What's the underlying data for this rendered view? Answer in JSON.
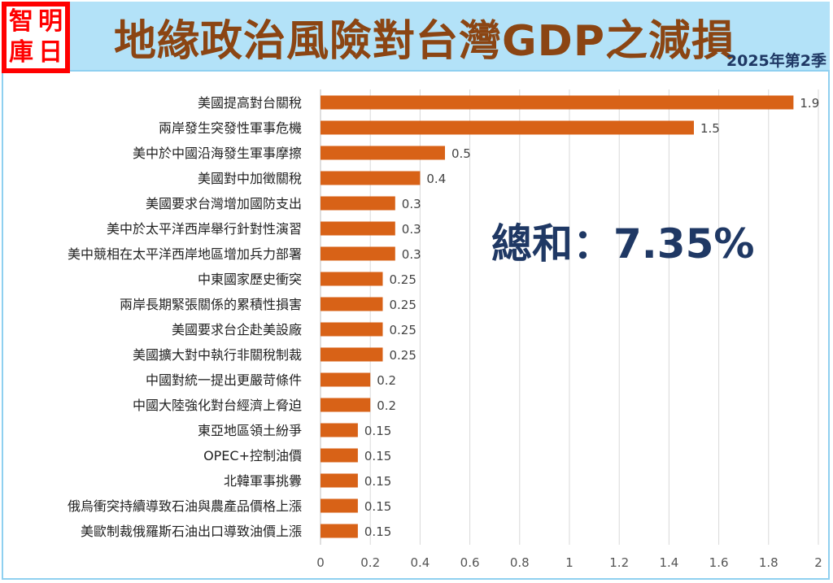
{
  "header": {
    "logo_chars": [
      "智",
      "明",
      "庫",
      "日"
    ],
    "title": "地緣政治風險對台灣GDP之減損",
    "subtitle": "2025年第2季"
  },
  "annotation": {
    "total_text": "總和：7.35%"
  },
  "colors": {
    "bar": "#d86217",
    "title": "#8b4513",
    "header_bg": "#b3e2f8",
    "accent_text": "#1f3864",
    "logo": "#ff0000"
  },
  "chart_data": {
    "type": "bar",
    "orientation": "horizontal",
    "title": "地緣政治風險對台灣GDP之減損",
    "subtitle": "2025年第2季",
    "xlabel": "",
    "ylabel": "",
    "xlim": [
      0,
      2
    ],
    "xticks": [
      "0",
      "0.2",
      "0.4",
      "0.6",
      "0.8",
      "1",
      "1.2",
      "1.4",
      "1.6",
      "1.8",
      "2"
    ],
    "xtick_values": [
      0,
      0.2,
      0.4,
      0.6,
      0.8,
      1,
      1.2,
      1.4,
      1.6,
      1.8,
      2
    ],
    "grid": true,
    "legend": "none",
    "categories": [
      "美國提高對台關稅",
      "兩岸發生突發性軍事危機",
      "美中於中國沿海發生軍事摩擦",
      "美國對中加徵關稅",
      "美國要求台灣增加國防支出",
      "美中於太平洋西岸舉行針對性演習",
      "美中競相在太平洋西岸地區增加兵力部署",
      "中東國家歷史衝突",
      "兩岸長期緊張關係的累積性損害",
      "美國要求台企赴美設廠",
      "美國擴大對中執行非關稅制裁",
      "中國對統一提出更嚴苛條件",
      "中國大陸強化對台經濟上脅迫",
      "東亞地區領土紛爭",
      "OPEC+控制油價",
      "北韓軍事挑釁",
      "俄烏衝突持續導致石油與農產品價格上漲",
      "美歐制裁俄羅斯石油出口導致油價上漲"
    ],
    "values": [
      1.9,
      1.5,
      0.5,
      0.4,
      0.3,
      0.3,
      0.3,
      0.25,
      0.25,
      0.25,
      0.25,
      0.2,
      0.2,
      0.15,
      0.15,
      0.15,
      0.15,
      0.15
    ],
    "value_labels": [
      "1.9",
      "1.5",
      "0.5",
      "0.4",
      "0.3",
      "0.3",
      "0.3",
      "0.25",
      "0.25",
      "0.25",
      "0.25",
      "0.2",
      "0.2",
      "0.15",
      "0.15",
      "0.15",
      "0.15",
      "0.15"
    ],
    "annotations": [
      "總和：7.35%"
    ]
  }
}
